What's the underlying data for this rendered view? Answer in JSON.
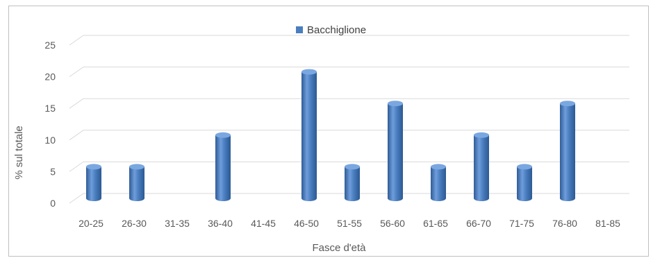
{
  "chart_data": {
    "type": "bar",
    "categories": [
      "20-25",
      "26-30",
      "31-35",
      "36-40",
      "41-45",
      "46-50",
      "51-55",
      "56-60",
      "61-65",
      "66-70",
      "71-75",
      "76-80",
      "81-85"
    ],
    "series": [
      {
        "name": "Bacchiglione",
        "values": [
          5,
          5,
          0,
          10,
          0,
          20,
          5,
          15,
          5,
          10,
          5,
          15,
          0
        ]
      }
    ],
    "xlabel": "Fasce d'età",
    "ylabel": "% sul totale",
    "ylim": [
      0,
      25
    ],
    "yticks": [
      0,
      5,
      10,
      15,
      20,
      25
    ],
    "grid": true,
    "legend_position": "top-center",
    "colors": {
      "bar_main": "#4a7ebf",
      "bar_light": "#7aa7e0",
      "bar_dark": "#2f5c96",
      "grid": "#d9d9d9"
    }
  }
}
